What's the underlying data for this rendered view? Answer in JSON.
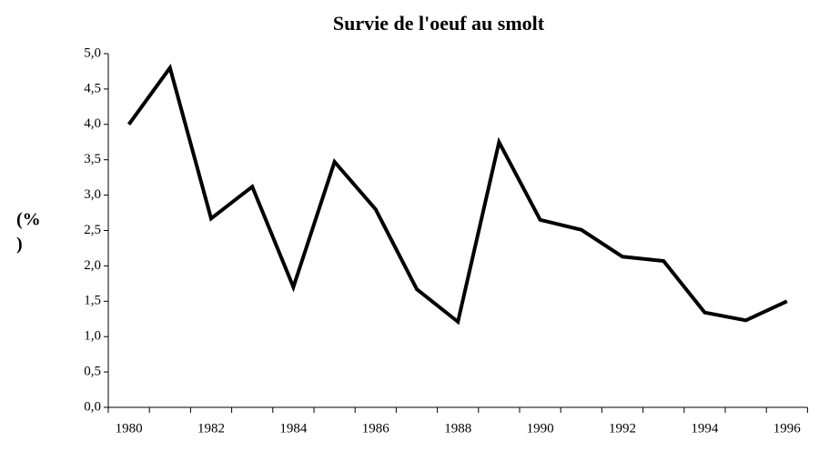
{
  "chart_data": {
    "type": "line",
    "title": "Survie de l'oeuf au smolt",
    "ylabel": [
      "(%",
      ")"
    ],
    "categories": [
      1980,
      null,
      1982,
      null,
      1984,
      null,
      1986,
      null,
      1988,
      null,
      1990,
      null,
      1992,
      null,
      1994,
      null,
      1996
    ],
    "values": [
      4.0,
      4.8,
      2.67,
      3.12,
      1.7,
      3.47,
      2.8,
      1.67,
      1.21,
      3.75,
      2.65,
      2.51,
      2.13,
      2.07,
      1.34,
      1.23,
      1.5
    ],
    "color": "#000000",
    "ylim": [
      0,
      5
    ],
    "yticks": [
      {
        "value": 0,
        "label": "0,0"
      },
      {
        "value": 0.5,
        "label": "0,5"
      },
      {
        "value": 1,
        "label": "1,0"
      },
      {
        "value": 1.5,
        "label": "1,5"
      },
      {
        "value": 2,
        "label": "2,0"
      },
      {
        "value": 2.5,
        "label": "2,5"
      },
      {
        "value": 3,
        "label": "3,0"
      },
      {
        "value": 3.5,
        "label": "3,5"
      },
      {
        "value": 4,
        "label": "4,0"
      },
      {
        "value": 4.5,
        "label": "4,5"
      },
      {
        "value": 5,
        "label": "5,0"
      }
    ]
  }
}
